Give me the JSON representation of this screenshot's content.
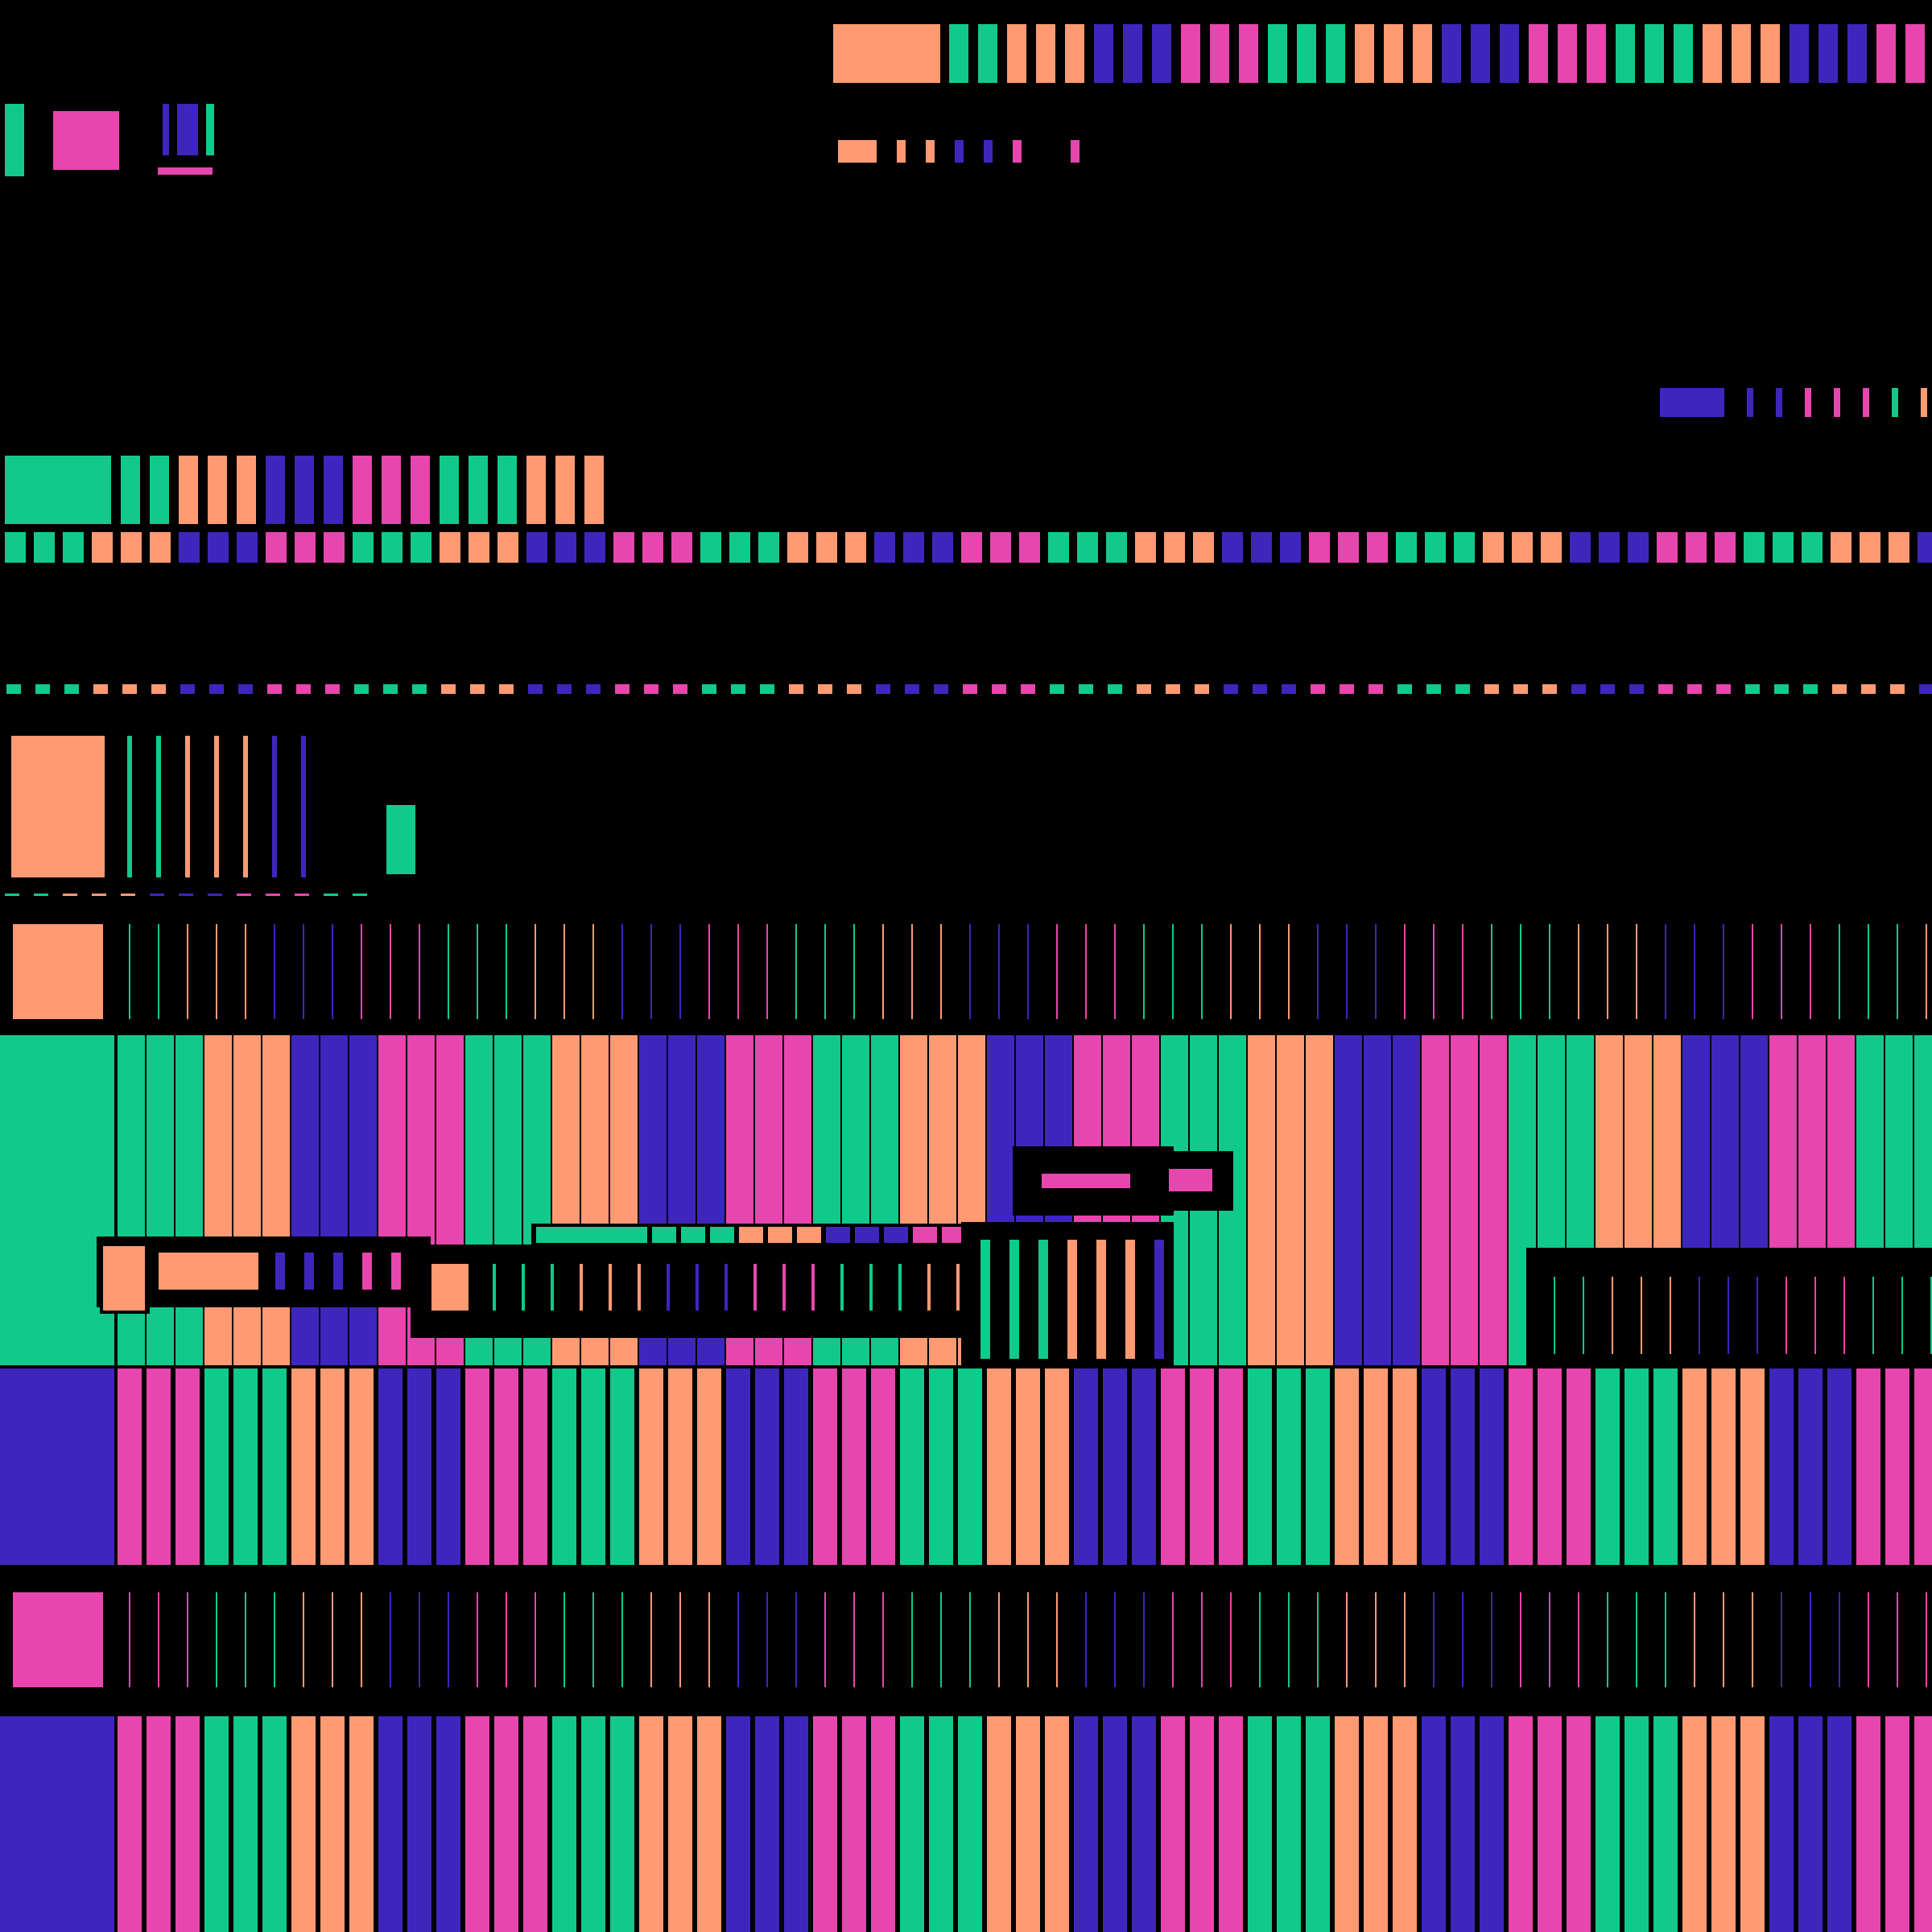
{
  "palette": {
    "background": "#000000",
    "green": "#12C98C",
    "salmon": "#FF9A73",
    "indigo": "#3E26BD",
    "pink": "#E646AD"
  },
  "pattern": {
    "color_sequence": [
      "green",
      "salmon",
      "indigo",
      "pink"
    ],
    "group_size": 3,
    "description_words": []
  },
  "view": {
    "title": "",
    "visible_text": []
  }
}
